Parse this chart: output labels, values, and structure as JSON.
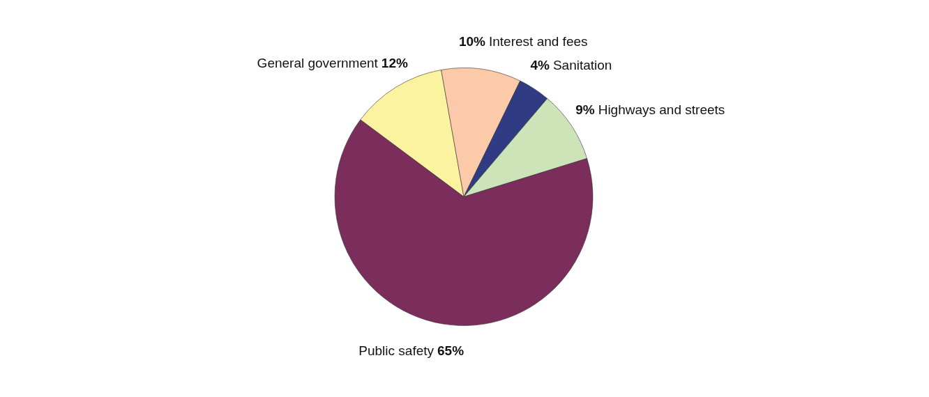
{
  "chart_data": {
    "type": "pie",
    "categories": [
      "General government",
      "Interest and fees",
      "Sanitation",
      "Highways and streets",
      "Public safety"
    ],
    "values": [
      12,
      10,
      4,
      9,
      65
    ],
    "value_labels": [
      "12%",
      "10%",
      "4%",
      "9%",
      "65%"
    ],
    "colors": [
      "#fbf3a0",
      "#fccaa8",
      "#2f3b82",
      "#cde3b8",
      "#7b2d5c"
    ]
  }
}
